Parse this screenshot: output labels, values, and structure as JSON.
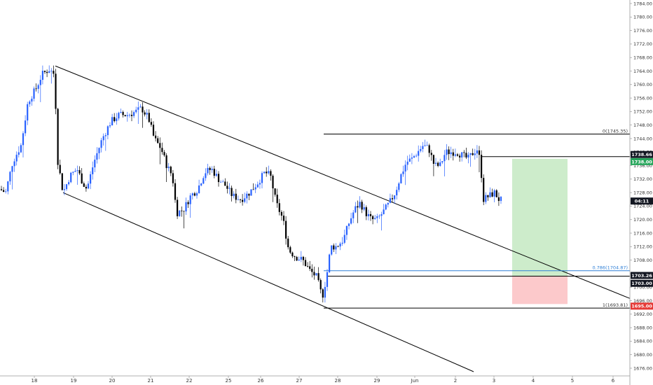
{
  "chart_data": {
    "type": "candlestick",
    "title": "",
    "xlabel": "",
    "ylabel": "",
    "ylim": [
      1674,
      1786
    ],
    "y_ticks": [
      "1676.00",
      "1680.00",
      "1684.00",
      "1688.00",
      "1692.00",
      "1696.00",
      "1700.00",
      "1704.00",
      "1708.00",
      "1712.00",
      "1716.00",
      "1720.00",
      "1724.00",
      "1728.00",
      "1732.00",
      "1736.00",
      "1740.00",
      "1744.00",
      "1748.00",
      "1752.00",
      "1756.00",
      "1760.00",
      "1764.00",
      "1768.00",
      "1772.00",
      "1776.00",
      "1780.00",
      "1784.00"
    ],
    "x_ticks": [
      "18",
      "19",
      "20",
      "21",
      "22",
      "25",
      "26",
      "27",
      "28",
      "29",
      "Jun",
      "2",
      "3",
      "4",
      "5",
      "6"
    ],
    "grid": false,
    "colors": {
      "up": "#2962ff",
      "down": "#000000",
      "channel": "#000000",
      "fib_786": "#2f7fd6",
      "profit_zone": "#cdeccb",
      "loss_zone": "#fcc9cb",
      "tag_dark": "#131722",
      "tag_green": "#26a65b",
      "tag_red": "#e53935"
    },
    "key_points": [
      {
        "label": "18",
        "price": 1729
      },
      {
        "label": "18 high",
        "price": 1765.5
      },
      {
        "label": "19 low",
        "price": 1728
      },
      {
        "label": "20",
        "price": 1751
      },
      {
        "label": "21 peak",
        "price": 1754
      },
      {
        "label": "22 low",
        "price": 1719
      },
      {
        "label": "25",
        "price": 1734
      },
      {
        "label": "26",
        "price": 1724
      },
      {
        "label": "26 high",
        "price": 1735
      },
      {
        "label": "27",
        "price": 1710
      },
      {
        "label": "27 low",
        "price": 1693.8
      },
      {
        "label": "28",
        "price": 1715
      },
      {
        "label": "28 high",
        "price": 1727
      },
      {
        "label": "29",
        "price": 1721
      },
      {
        "label": "Jun",
        "price": 1738
      },
      {
        "label": "Jun high",
        "price": 1744
      },
      {
        "label": "2",
        "price": 1737
      },
      {
        "label": "2 high",
        "price": 1745.35
      },
      {
        "label": "3 drop",
        "price": 1727
      },
      {
        "label": "3 last",
        "price": 1726
      }
    ],
    "annotations": {
      "fib_0": "0(1745.35)",
      "fib_786": "0.786(1704.87)",
      "fib_1": "1(1693.81)",
      "price_1738_66": "1738.66",
      "price_1738_00": "1738.00",
      "current_price": "04:11",
      "price_1703_26": "1703.26",
      "price_1703_00": "1703.00",
      "price_1695_00": "1695.00"
    },
    "levels": {
      "fib_0": 1745.35,
      "fib_786": 1704.87,
      "fib_1": 1693.81,
      "entry_high": 1738.66,
      "target": 1738.0,
      "current": 1725.5,
      "entry": 1703.26,
      "entry_low": 1703.0,
      "stop": 1695.0
    }
  }
}
